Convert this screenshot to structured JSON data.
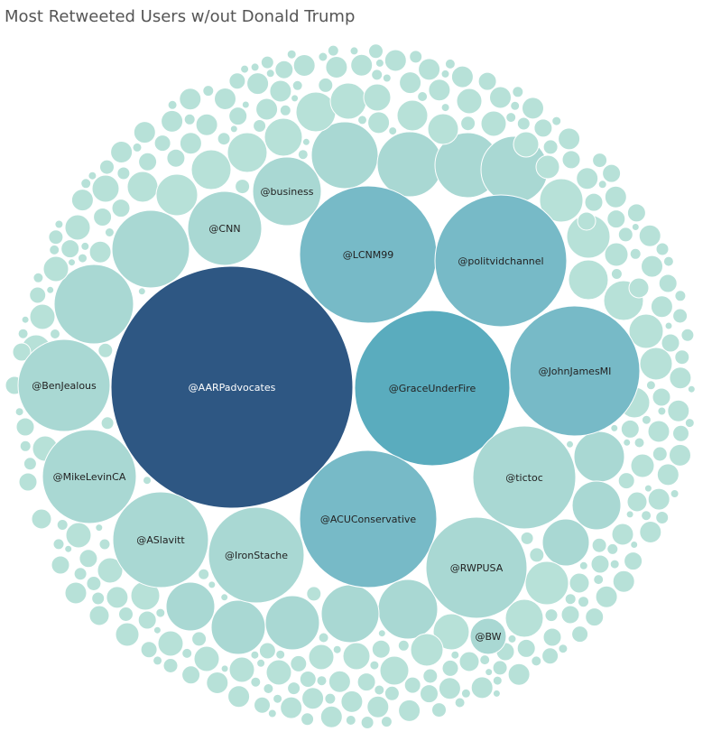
{
  "chart_data": {
    "type": "bubble",
    "title": "Most Retweeted Users w/out Donald Trump",
    "labeled_bubbles": [
      {
        "name": "@AARPadvocates",
        "value": 100
      },
      {
        "name": "@GraceUnderFire",
        "value": 41
      },
      {
        "name": "@ACUConservative",
        "value": 32
      },
      {
        "name": "@LCNM99",
        "value": 31
      },
      {
        "name": "@politvidchannel",
        "value": 30
      },
      {
        "name": "@JohnJamesMI",
        "value": 29
      },
      {
        "name": "@tictoc",
        "value": 18
      },
      {
        "name": "@RWPUSA",
        "value": 17
      },
      {
        "name": "@IronStache",
        "value": 16
      },
      {
        "name": "@ASlavitt",
        "value": 16
      },
      {
        "name": "@MikeLevinCA",
        "value": 15
      },
      {
        "name": "@BenJealous",
        "value": 15
      },
      {
        "name": "@CNN",
        "value": 9.5
      },
      {
        "name": "@business",
        "value": 8.6
      },
      {
        "name": "@BW",
        "value": 2.2
      }
    ],
    "unlabeled_note": "",
    "colors": {
      "darkest": "#2e5783",
      "dark": "#5aacbe",
      "mid": "#77bac7",
      "light": "#a9d8d3",
      "lightest": "#b7e1d8",
      "label_dark_bg": "#ffffff",
      "label_light_bg": "#222222"
    }
  }
}
